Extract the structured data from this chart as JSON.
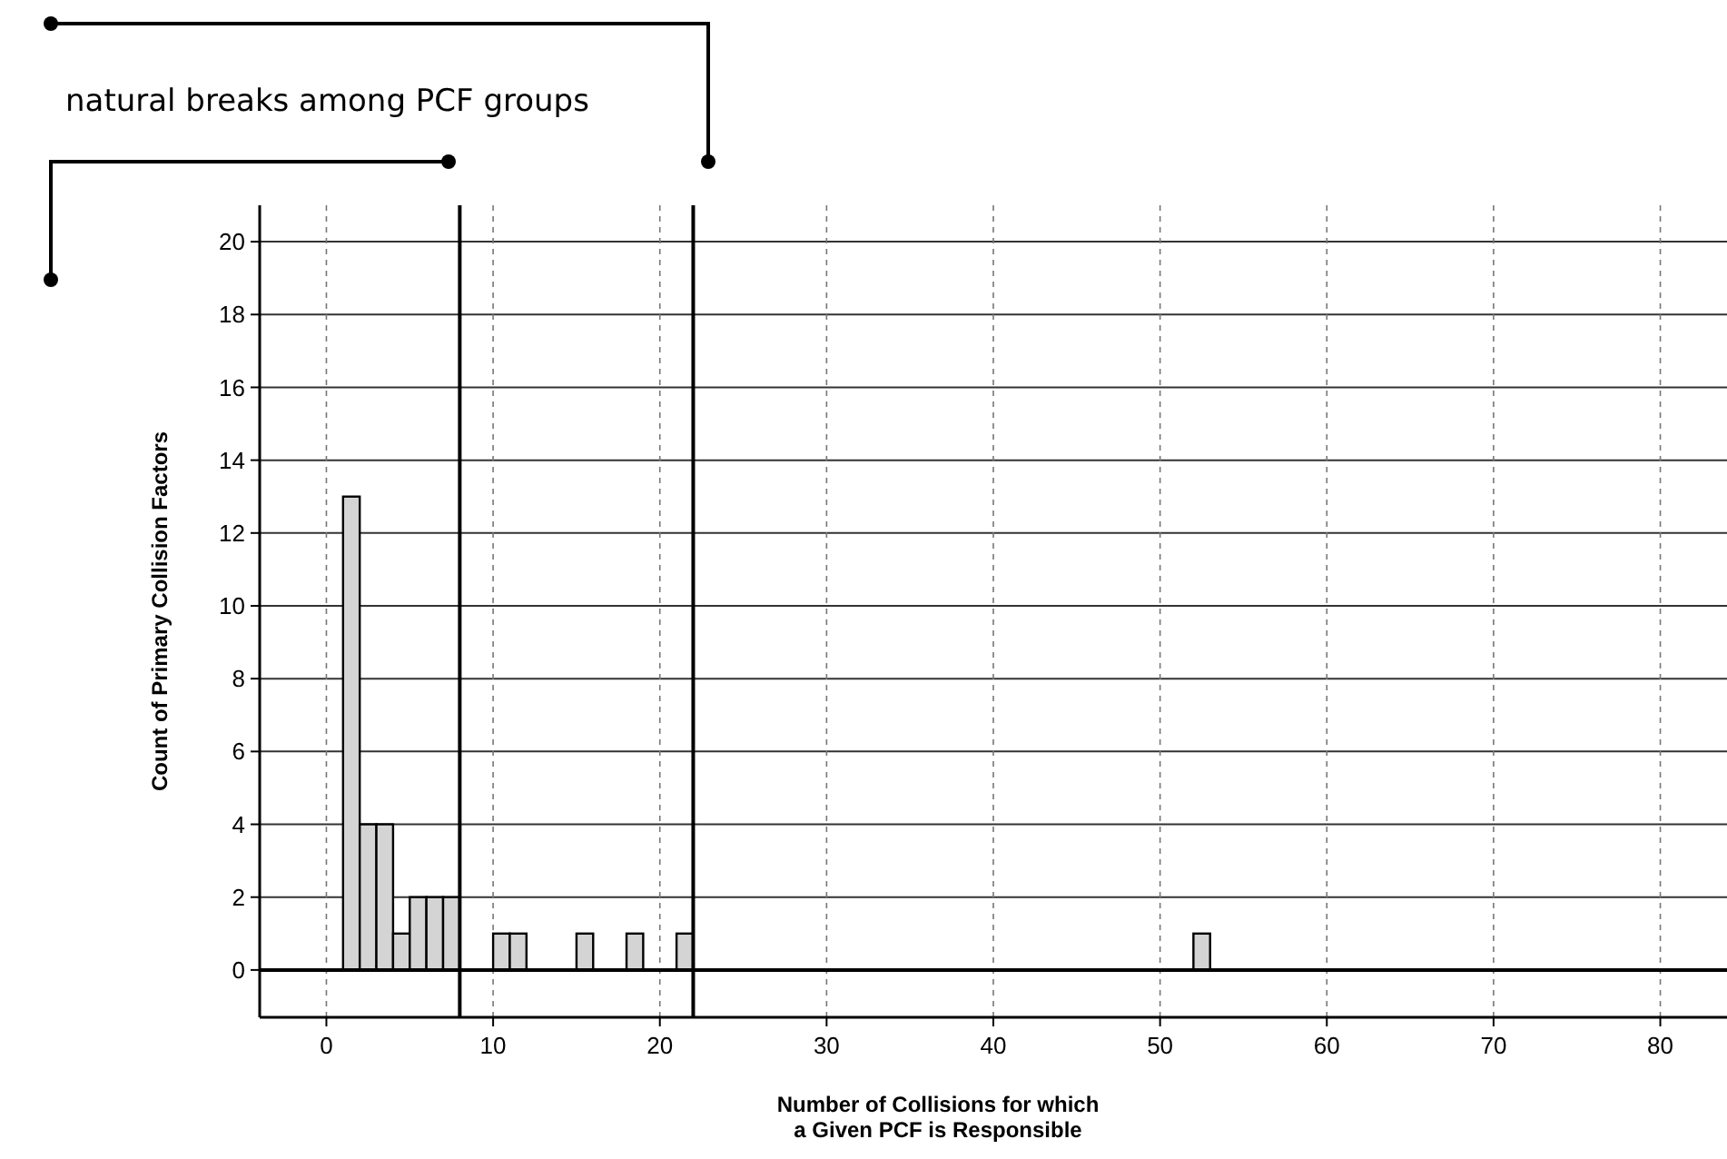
{
  "chart_data": {
    "type": "histogram",
    "xlabel": "Number of Collisions for which\na Given PCF is Responsible",
    "ylabel": "Count of Primary Collision Factors",
    "annotations": [
      "natural breaks among PCF groups"
    ],
    "bins": [
      1,
      2,
      3,
      4,
      5,
      6,
      7,
      8,
      9,
      10,
      11,
      12,
      13,
      14,
      15,
      16,
      17,
      18,
      19,
      20,
      21,
      22,
      23,
      24,
      25,
      26,
      27,
      28,
      29,
      30,
      31,
      32,
      33,
      34,
      35,
      36,
      37,
      38,
      39,
      40,
      41,
      42,
      43,
      44,
      45,
      46,
      47,
      48,
      49,
      50,
      51,
      52,
      53
    ],
    "values": [
      13,
      4,
      4,
      1,
      2,
      2,
      2,
      0,
      0,
      1,
      1,
      0,
      0,
      0,
      1,
      0,
      0,
      1,
      0,
      0,
      1,
      0,
      0,
      0,
      0,
      0,
      0,
      0,
      0,
      0,
      0,
      0,
      0,
      0,
      0,
      0,
      0,
      0,
      0,
      0,
      0,
      0,
      0,
      0,
      0,
      0,
      0,
      0,
      0,
      0,
      0,
      1
    ],
    "color": "#d4d4d4",
    "xlim": [
      -4,
      84
    ],
    "xticks": [
      0,
      10,
      20,
      30,
      40,
      50,
      60,
      70,
      80
    ],
    "ylim": [
      -1.3,
      21
    ],
    "yticks": [
      0,
      2,
      4,
      6,
      8,
      10,
      12,
      14,
      16,
      18,
      20
    ],
    "grid": true,
    "ref_lines": [
      {
        "axis": "x",
        "value": 8,
        "color": "#000000"
      },
      {
        "axis": "x",
        "value": 22,
        "color": "#000000"
      }
    ]
  }
}
